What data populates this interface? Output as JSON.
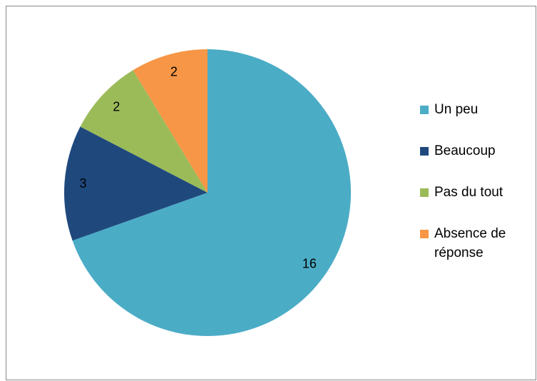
{
  "chart_data": {
    "type": "pie",
    "categories": [
      "Un peu",
      "Beaucoup",
      "Pas du tout",
      "Absence de réponse"
    ],
    "values": [
      16,
      3,
      2,
      2
    ],
    "colors": [
      "#4bacc6",
      "#1f497d",
      "#9bbb59",
      "#f79646"
    ],
    "legend": "right"
  }
}
